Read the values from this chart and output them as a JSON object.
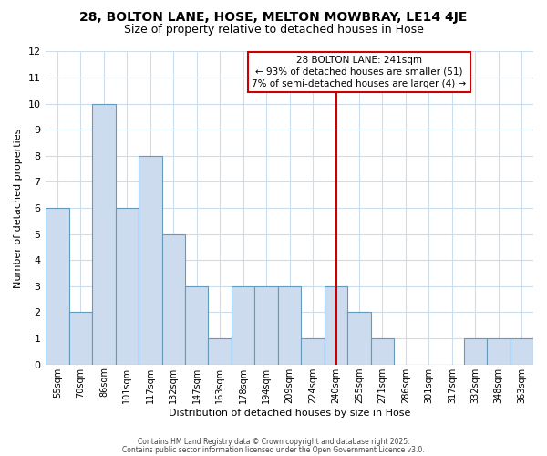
{
  "title1": "28, BOLTON LANE, HOSE, MELTON MOWBRAY, LE14 4JE",
  "title2": "Size of property relative to detached houses in Hose",
  "xlabel": "Distribution of detached houses by size in Hose",
  "ylabel": "Number of detached properties",
  "bar_labels": [
    "55sqm",
    "70sqm",
    "86sqm",
    "101sqm",
    "117sqm",
    "132sqm",
    "147sqm",
    "163sqm",
    "178sqm",
    "194sqm",
    "209sqm",
    "224sqm",
    "240sqm",
    "255sqm",
    "271sqm",
    "286sqm",
    "301sqm",
    "317sqm",
    "332sqm",
    "348sqm",
    "363sqm"
  ],
  "bar_values": [
    6,
    2,
    10,
    6,
    8,
    5,
    3,
    1,
    3,
    3,
    3,
    1,
    3,
    2,
    1,
    0,
    0,
    0,
    1,
    1,
    1
  ],
  "bar_color": "#ccdcee",
  "bar_edge_color": "#6699bb",
  "vline_x_index": 12,
  "vline_color": "#cc0000",
  "annotation_line0": "28 BOLTON LANE: 241sqm",
  "annotation_line1": "← 93% of detached houses are smaller (51)",
  "annotation_line2": "7% of semi-detached houses are larger (4) →",
  "annotation_box_edgecolor": "#cc0000",
  "ylim": [
    0,
    12
  ],
  "yticks": [
    0,
    1,
    2,
    3,
    4,
    5,
    6,
    7,
    8,
    9,
    10,
    11,
    12
  ],
  "footer1": "Contains HM Land Registry data © Crown copyright and database right 2025.",
  "footer2": "Contains public sector information licensed under the Open Government Licence v3.0.",
  "bg_color": "#ffffff",
  "grid_color": "#ccddee",
  "title1_fontsize": 10,
  "title2_fontsize": 9
}
